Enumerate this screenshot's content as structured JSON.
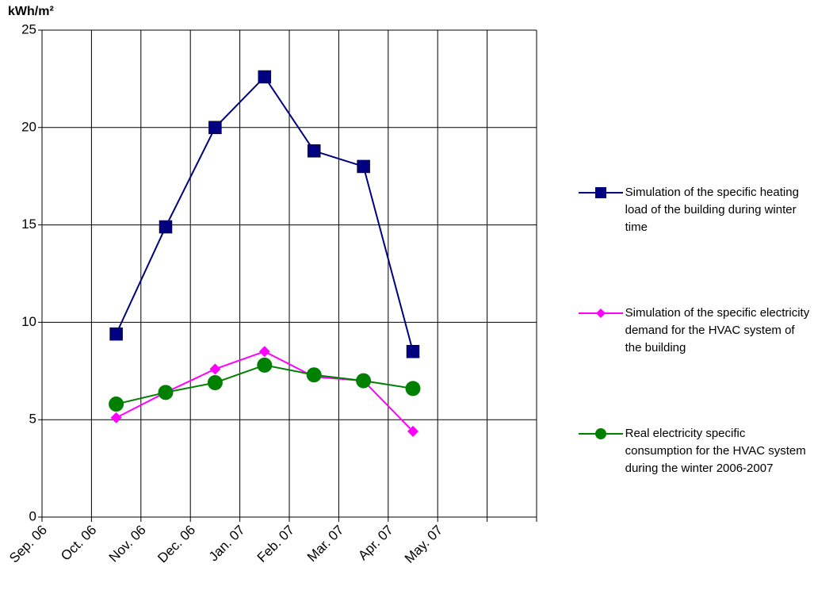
{
  "chart_data": {
    "type": "line",
    "y_label": "kWh/m²",
    "categories": [
      "Sep. 06",
      "Oct. 06",
      "Nov. 06",
      "Dec. 06",
      "Jan. 07",
      "Feb. 07",
      "Mar. 07",
      "Apr. 07",
      "May. 07",
      null
    ],
    "series": [
      {
        "name": "Simulation of the specific heating load of the building during winter time",
        "color": "#000080",
        "marker": "square",
        "values": [
          null,
          9.4,
          14.9,
          20.0,
          22.6,
          18.8,
          18.0,
          8.5,
          null,
          null
        ]
      },
      {
        "name": "Simulation of the specific electricity demand for the HVAC system of the building",
        "color": "#ff00ff",
        "marker": "diamond",
        "values": [
          null,
          5.1,
          6.4,
          7.6,
          8.5,
          7.2,
          7.0,
          4.4,
          null,
          null
        ]
      },
      {
        "name": "Real electricity specific consumption for the HVAC system during the winter 2006-2007",
        "color": "#008000",
        "marker": "circle",
        "values": [
          null,
          5.8,
          6.4,
          6.9,
          7.8,
          7.3,
          7.0,
          6.6,
          null,
          null
        ]
      }
    ],
    "ylim": [
      0,
      25
    ],
    "yticks": [
      0,
      5,
      10,
      15,
      20,
      25
    ],
    "grid": true
  }
}
